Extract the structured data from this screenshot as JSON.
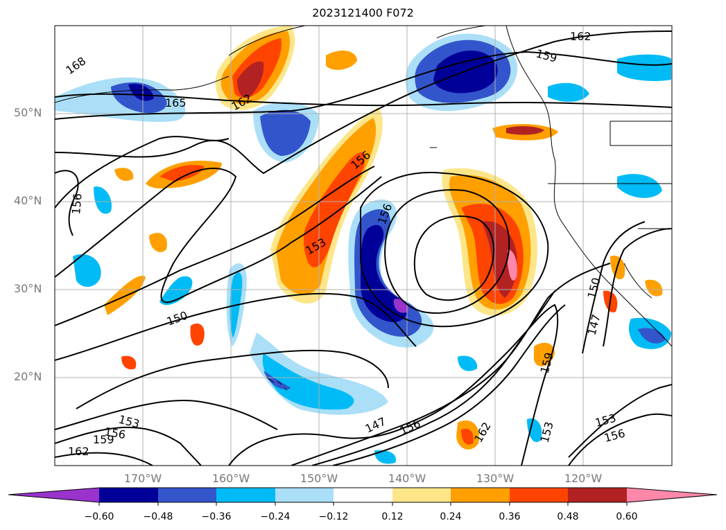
{
  "title": "2023121400 F072",
  "lat_labels": [
    "50°N",
    "40°N",
    "30°N",
    "20°N"
  ],
  "lon_labels": [
    "170°W",
    "160°W",
    "150°W",
    "140°W",
    "130°W",
    "120°W"
  ],
  "contour_labels": [
    "168",
    "165",
    "162",
    "162",
    "159",
    "156",
    "156",
    "156",
    "153",
    "150",
    "150",
    "147",
    "147",
    "159",
    "153",
    "153",
    "156",
    "162",
    "156",
    "153",
    "156",
    "159",
    "162"
  ],
  "colorbar": {
    "ticks": [
      "−0.60",
      "−0.48",
      "−0.36",
      "−0.24",
      "−0.12",
      "0.12",
      "0.24",
      "0.36",
      "0.48",
      "0.60"
    ],
    "colors": {
      "low_extend": "#9933cc",
      "b1": "#000099",
      "b2": "#3355cc",
      "b3": "#00bbf5",
      "b4": "#aadff7",
      "white": "#ffffff",
      "y1": "#fde68a",
      "o1": "#ffa000",
      "o2": "#ff4400",
      "r1": "#b22222",
      "high_extend": "#ff88aa"
    }
  }
}
